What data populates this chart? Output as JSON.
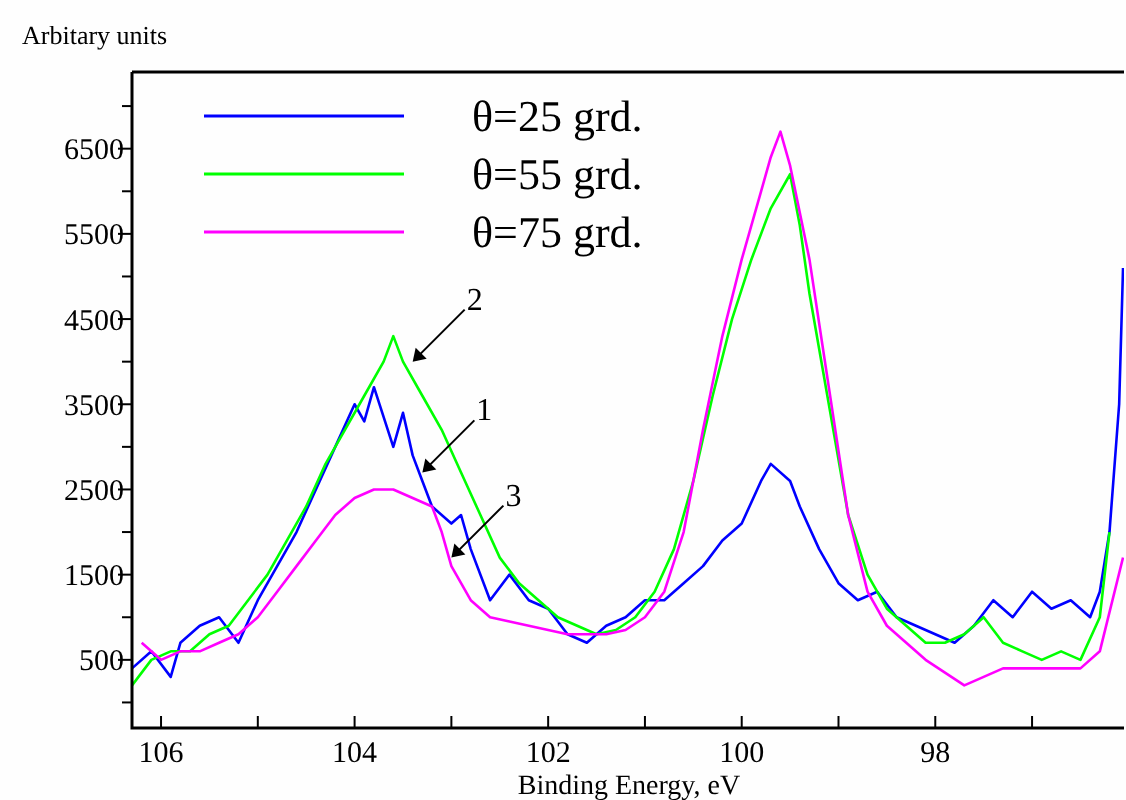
{
  "chart_data": {
    "type": "line",
    "xlabel": "Binding Energy, eV",
    "ylabel": "Arbitary units",
    "xlim": [
      106.3,
      96.05
    ],
    "ylim": [
      -300,
      7400
    ],
    "xticks": [
      106,
      {
        "value": 105,
        "label": null
      },
      104,
      {
        "value": 103,
        "label": null
      },
      102,
      {
        "value": 101,
        "label": null
      },
      100,
      {
        "value": 99,
        "label": null
      },
      98,
      {
        "value": 97,
        "label": null
      }
    ],
    "yticks": [
      {
        "value": 0,
        "label": null
      },
      500,
      {
        "value": 1000,
        "label": null
      },
      1500,
      {
        "value": 2000,
        "label": null
      },
      2500,
      {
        "value": 3000,
        "label": null
      },
      3500,
      {
        "value": 4000,
        "label": null
      },
      4500,
      {
        "value": 5000,
        "label": null
      },
      5500,
      {
        "value": 6000,
        "label": null
      },
      6500,
      {
        "value": 7000,
        "label": null
      }
    ],
    "legend": "top left",
    "grid": false,
    "line_style": "solid",
    "annotations": [
      {
        "text": "2",
        "x": 103.4,
        "y": 4000
      },
      {
        "text": "1",
        "x": 103.3,
        "y": 2700
      },
      {
        "text": "3",
        "x": 103.0,
        "y": 1700
      }
    ],
    "series": [
      {
        "name": "θ=25 grd.",
        "color": "#0000ff",
        "x": [
          106.3,
          106.1,
          105.9,
          105.8,
          105.6,
          105.4,
          105.2,
          105.0,
          104.8,
          104.6,
          104.4,
          104.2,
          104.0,
          103.9,
          103.8,
          103.6,
          103.5,
          103.4,
          103.3,
          103.2,
          103.0,
          102.9,
          102.8,
          102.6,
          102.4,
          102.2,
          102.0,
          101.8,
          101.6,
          101.4,
          101.2,
          101.0,
          100.8,
          100.6,
          100.4,
          100.2,
          100.0,
          99.8,
          99.7,
          99.5,
          99.4,
          99.2,
          99.0,
          98.8,
          98.6,
          98.4,
          98.2,
          98.0,
          97.8,
          97.6,
          97.4,
          97.2,
          97.0,
          96.8,
          96.6,
          96.4,
          96.3,
          96.2,
          96.1,
          96.06
        ],
        "values": [
          400,
          600,
          300,
          700,
          900,
          1000,
          700,
          1200,
          1600,
          2000,
          2500,
          3000,
          3500,
          3300,
          3700,
          3000,
          3400,
          2900,
          2600,
          2300,
          2100,
          2200,
          1800,
          1200,
          1500,
          1200,
          1100,
          800,
          700,
          900,
          1000,
          1200,
          1200,
          1400,
          1600,
          1900,
          2100,
          2600,
          2800,
          2600,
          2300,
          1800,
          1400,
          1200,
          1300,
          1000,
          900,
          800,
          700,
          900,
          1200,
          1000,
          1300,
          1100,
          1200,
          1000,
          1300,
          2000,
          3500,
          5100
        ]
      },
      {
        "name": "θ=55 grd.",
        "color": "#00ff00",
        "x": [
          106.3,
          106.1,
          105.9,
          105.7,
          105.5,
          105.3,
          105.1,
          104.9,
          104.7,
          104.5,
          104.3,
          104.1,
          103.9,
          103.7,
          103.6,
          103.5,
          103.3,
          103.1,
          102.9,
          102.7,
          102.5,
          102.3,
          102.1,
          101.9,
          101.7,
          101.5,
          101.3,
          101.1,
          100.9,
          100.7,
          100.5,
          100.3,
          100.1,
          99.9,
          99.7,
          99.5,
          99.4,
          99.3,
          99.1,
          98.9,
          98.7,
          98.5,
          98.3,
          98.1,
          97.9,
          97.7,
          97.5,
          97.3,
          97.1,
          96.9,
          96.7,
          96.5,
          96.3,
          96.2
        ],
        "values": [
          200,
          500,
          600,
          600,
          800,
          900,
          1200,
          1500,
          1900,
          2300,
          2800,
          3200,
          3600,
          4000,
          4300,
          4000,
          3600,
          3200,
          2700,
          2200,
          1700,
          1400,
          1200,
          1000,
          900,
          800,
          850,
          1000,
          1300,
          1800,
          2600,
          3600,
          4500,
          5200,
          5800,
          6200,
          5600,
          4800,
          3500,
          2200,
          1500,
          1100,
          900,
          700,
          700,
          800,
          1000,
          700,
          600,
          500,
          600,
          500,
          1000,
          2000
        ]
      },
      {
        "name": "θ=75 grd.",
        "color": "#ff00ff",
        "x": [
          106.2,
          106.0,
          105.8,
          105.6,
          105.4,
          105.2,
          105.0,
          104.8,
          104.6,
          104.4,
          104.2,
          104.0,
          103.8,
          103.6,
          103.4,
          103.2,
          103.1,
          103.0,
          102.8,
          102.6,
          102.4,
          102.2,
          102.0,
          101.8,
          101.6,
          101.4,
          101.2,
          101.0,
          100.8,
          100.6,
          100.4,
          100.2,
          100.0,
          99.8,
          99.7,
          99.6,
          99.5,
          99.3,
          99.1,
          98.9,
          98.7,
          98.5,
          98.3,
          98.1,
          97.9,
          97.7,
          97.5,
          97.3,
          97.1,
          96.9,
          96.7,
          96.5,
          96.3,
          96.06
        ],
        "values": [
          700,
          500,
          600,
          600,
          700,
          800,
          1000,
          1300,
          1600,
          1900,
          2200,
          2400,
          2500,
          2500,
          2400,
          2300,
          2000,
          1600,
          1200,
          1000,
          950,
          900,
          850,
          800,
          800,
          800,
          850,
          1000,
          1300,
          2000,
          3200,
          4300,
          5200,
          6000,
          6400,
          6700,
          6300,
          5200,
          3700,
          2200,
          1300,
          900,
          700,
          500,
          350,
          200,
          300,
          400,
          400,
          400,
          400,
          400,
          600,
          1700
        ]
      }
    ]
  }
}
